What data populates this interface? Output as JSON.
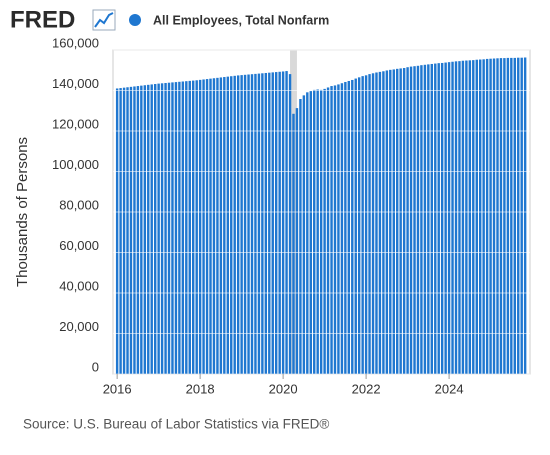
{
  "logo": "FRED",
  "source": "Source: U.S. Bureau of Labor Statistics via FRED®",
  "chart_data": {
    "type": "bar",
    "y_label": "Thousands of Persons",
    "series": [
      {
        "name": "All Employees, Total Nonfarm",
        "color": "#1f77d0",
        "values": [
          141000,
          141200,
          141400,
          141600,
          141800,
          142000,
          142200,
          142400,
          142600,
          142800,
          143000,
          143200,
          143400,
          143550,
          143700,
          143850,
          144000,
          144150,
          144300,
          144450,
          144600,
          144750,
          144900,
          145050,
          145250,
          145450,
          145650,
          145850,
          146050,
          146250,
          146450,
          146650,
          146850,
          147050,
          147250,
          147450,
          147600,
          147750,
          147900,
          148050,
          148200,
          148350,
          148500,
          148650,
          148800,
          148950,
          149100,
          149250,
          149400,
          149600,
          148100,
          128500,
          131300,
          135800,
          137600,
          139100,
          139700,
          140300,
          140500,
          140300,
          140800,
          141500,
          142200,
          142500,
          143000,
          143600,
          144200,
          144700,
          145200,
          145900,
          146500,
          147100,
          147500,
          148100,
          148500,
          148900,
          149200,
          149500,
          149900,
          150200,
          150400,
          150700,
          150900,
          151100,
          151500,
          151800,
          152000,
          152200,
          152500,
          152700,
          152900,
          153100,
          153300,
          153500,
          153600,
          153800,
          154000,
          154200,
          154400,
          154500,
          154700,
          154800,
          154900,
          155000,
          155200,
          155300,
          155400,
          155600,
          155700,
          155800,
          155900,
          156000,
          156000,
          156100,
          156100,
          156100,
          156200,
          156200,
          156300
        ]
      }
    ],
    "x": [
      2016,
      2016.083,
      2016.167,
      2016.25,
      2016.333,
      2016.417,
      2016.5,
      2016.583,
      2016.667,
      2016.75,
      2016.833,
      2016.917,
      2017,
      2017.083,
      2017.167,
      2017.25,
      2017.333,
      2017.417,
      2017.5,
      2017.583,
      2017.667,
      2017.75,
      2017.833,
      2017.917,
      2018,
      2018.083,
      2018.167,
      2018.25,
      2018.333,
      2018.417,
      2018.5,
      2018.583,
      2018.667,
      2018.75,
      2018.833,
      2018.917,
      2019,
      2019.083,
      2019.167,
      2019.25,
      2019.333,
      2019.417,
      2019.5,
      2019.583,
      2019.667,
      2019.75,
      2019.833,
      2019.917,
      2020,
      2020.083,
      2020.167,
      2020.25,
      2020.333,
      2020.417,
      2020.5,
      2020.583,
      2020.667,
      2020.75,
      2020.833,
      2020.917,
      2021,
      2021.083,
      2021.167,
      2021.25,
      2021.333,
      2021.417,
      2021.5,
      2021.583,
      2021.667,
      2021.75,
      2021.833,
      2021.917,
      2022,
      2022.083,
      2022.167,
      2022.25,
      2022.333,
      2022.417,
      2022.5,
      2022.583,
      2022.667,
      2022.75,
      2022.833,
      2022.917,
      2023,
      2023.083,
      2023.167,
      2023.25,
      2023.333,
      2023.417,
      2023.5,
      2023.583,
      2023.667,
      2023.75,
      2023.833,
      2023.917,
      2024,
      2024.083,
      2024.167,
      2024.25,
      2024.333,
      2024.417,
      2024.5,
      2024.583,
      2024.667,
      2024.75,
      2024.833,
      2024.917,
      2025,
      2025.083,
      2025.167,
      2025.25,
      2025.333,
      2025.417,
      2025.5,
      2025.583,
      2025.667,
      2025.75,
      2025.833
    ],
    "xlim": [
      2015.9,
      2025.95
    ],
    "xticks": [
      2016,
      2018,
      2020,
      2022,
      2024
    ],
    "ylim": [
      0,
      160000
    ],
    "yticks": [
      0,
      {
        "value": 20000,
        "label": "20,000"
      },
      {
        "value": 40000,
        "label": "40,000"
      },
      {
        "value": 60000,
        "label": "60,000"
      },
      {
        "value": 80000,
        "label": "80,000"
      },
      {
        "value": 100000,
        "label": "100,000"
      },
      {
        "value": 120000,
        "label": "120,000"
      },
      {
        "value": 140000,
        "label": "140,000"
      },
      {
        "value": 160000,
        "label": "160,000"
      }
    ],
    "shading": [
      2020.167,
      2020.333
    ],
    "shading_color": "#d9d9d9",
    "grid": true
  }
}
